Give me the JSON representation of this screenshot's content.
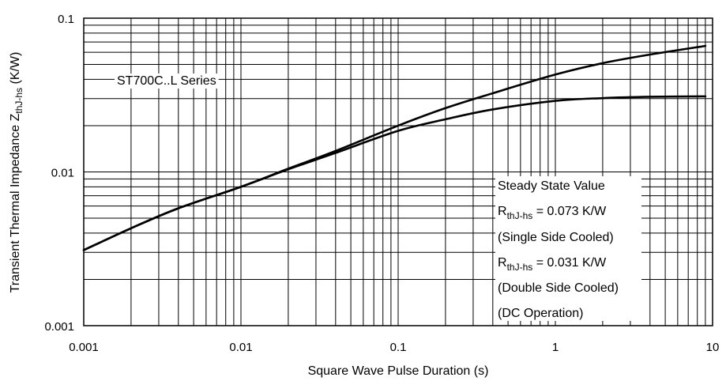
{
  "chart_data": {
    "type": "line",
    "title": "",
    "xlabel": "Square Wave Pulse Duration (s)",
    "ylabel": "Transient Thermal Impedance Z",
    "ylabel_sub": "thJ-hs",
    "ylabel_unit": " (K/W)",
    "x_scale": "log",
    "y_scale": "log",
    "xlim": [
      0.001,
      10
    ],
    "ylim": [
      0.001,
      0.1
    ],
    "grid": true,
    "x_tick_labels": [
      "0.001",
      "0.01",
      "0.1",
      "1",
      "10"
    ],
    "y_tick_labels": [
      "0.001",
      "0.01",
      "0.1"
    ],
    "series_label": "ST700C..L Series",
    "series": [
      {
        "x": [
          0.001,
          0.002,
          0.004,
          0.01,
          0.02,
          0.04,
          0.1,
          0.2,
          0.4,
          1,
          2,
          4,
          9
        ],
        "y": [
          0.0031,
          0.0043,
          0.0058,
          0.008,
          0.0105,
          0.0137,
          0.02,
          0.026,
          0.0325,
          0.043,
          0.051,
          0.058,
          0.066
        ]
      },
      {
        "x": [
          0.001,
          0.002,
          0.004,
          0.01,
          0.02,
          0.04,
          0.1,
          0.2,
          0.4,
          1,
          2,
          4,
          9
        ],
        "y": [
          0.0031,
          0.0043,
          0.0058,
          0.008,
          0.0104,
          0.0133,
          0.0185,
          0.022,
          0.0255,
          0.029,
          0.0302,
          0.0308,
          0.031
        ]
      }
    ],
    "annotation": {
      "line1": "Steady State Value",
      "r_label": "R",
      "r_sub": "thJ-hs",
      "line2_value": " = 0.073 K/W",
      "line3": "(Single Side Cooled)",
      "line4_value": " = 0.031 K/W",
      "line5": "(Double Side Cooled)",
      "line6": "(DC Operation)"
    }
  }
}
